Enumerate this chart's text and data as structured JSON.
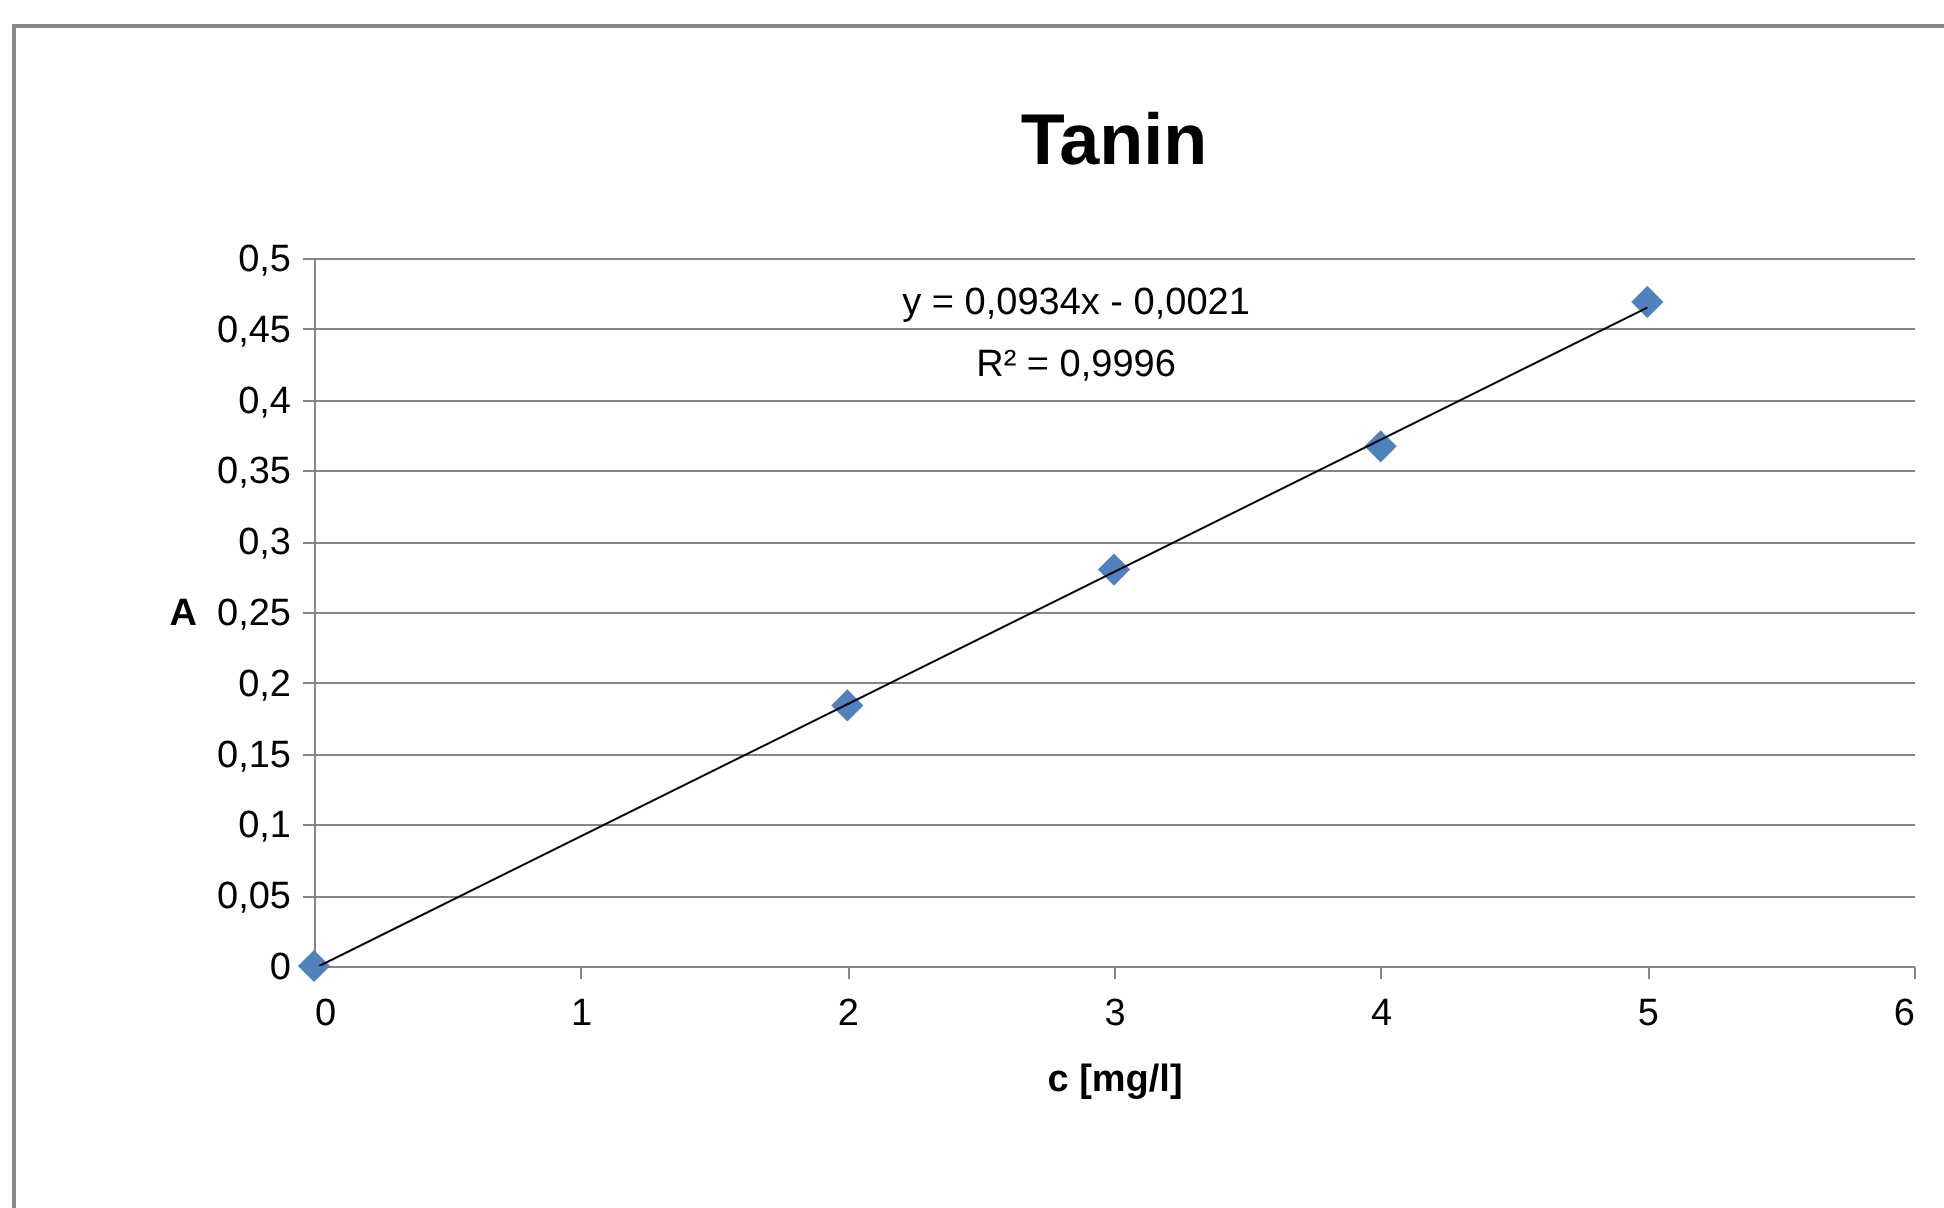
{
  "chart_data": {
    "type": "scatter",
    "title": "Tanin",
    "xlabel": "c [mg/l]",
    "ylabel": "A",
    "x": [
      0,
      2,
      3,
      4,
      5
    ],
    "series": [
      {
        "type": "scatter",
        "color": "#4f81bd",
        "values": [
          0,
          0.184,
          0.28,
          0.367,
          0.469
        ],
        "marker": "diamond"
      },
      {
        "type": "line",
        "color": "#000000",
        "x": [
          0.02,
          5
        ],
        "values": [
          0,
          0.465
        ],
        "marker": "none"
      }
    ],
    "xlim": [
      0,
      6
    ],
    "xticks": [
      0,
      1,
      2,
      3,
      4,
      5,
      6
    ],
    "ylim": [
      0,
      0.5
    ],
    "yticks": [
      0,
      {
        "value": 0.05,
        "label": "0,05"
      },
      {
        "value": 0.1,
        "label": "0,1"
      },
      {
        "value": 0.15,
        "label": "0,15"
      },
      {
        "value": 0.2,
        "label": "0,2"
      },
      {
        "value": 0.25,
        "label": "0,25"
      },
      {
        "value": 0.3,
        "label": "0,3"
      },
      {
        "value": 0.35,
        "label": "0,35"
      },
      {
        "value": 0.4,
        "label": "0,4"
      },
      {
        "value": 0.45,
        "label": "0,45"
      },
      {
        "value": 0.5,
        "label": "0,5"
      }
    ],
    "grid": "y",
    "annotations": [
      "y = 0,0934x - 0,0021",
      "R² = 0,9996"
    ]
  }
}
